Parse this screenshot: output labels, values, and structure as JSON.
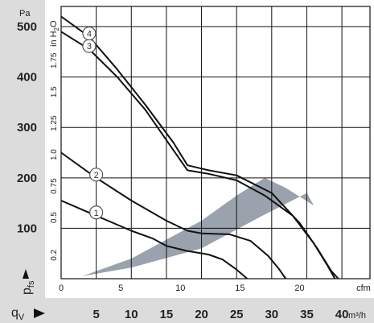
{
  "chart_data": {
    "type": "line",
    "x_label_cfm": "cfm",
    "x_label_m3h": "m³/h",
    "x_label_flow": "q",
    "x_label_flow_sub": "V",
    "y_label_pa": "Pa",
    "y_label_in": "in H",
    "y_label_in_sub": "2",
    "y_label_in_tail": "O",
    "y_label_pressure": "p",
    "y_label_pressure_sub": "fs",
    "x_cfm_ticks": [
      "0",
      "5",
      "10",
      "15",
      "20",
      "cfm"
    ],
    "x_m3h_ticks": [
      "5",
      "10",
      "15",
      "20",
      "25",
      "30",
      "35",
      "40"
    ],
    "y_pa_ticks": [
      "100",
      "200",
      "300",
      "400",
      "500"
    ],
    "y_in_ticks": [
      "0.2",
      "0.5",
      "0.75",
      "1.0",
      "1.25",
      "1.5",
      "1.75",
      "in H2O"
    ],
    "xlim_m3h": [
      0,
      44
    ],
    "ylim_pa": [
      0,
      540
    ],
    "operating_region": {
      "lower_edge": [
        [
          3,
          5
        ],
        [
          10,
          22
        ],
        [
          20,
          60
        ],
        [
          28,
          120
        ],
        [
          35,
          170
        ]
      ],
      "upper_edge": [
        [
          3,
          5
        ],
        [
          10,
          40
        ],
        [
          20,
          115
        ],
        [
          25,
          165
        ],
        [
          29,
          200
        ],
        [
          32,
          180
        ],
        [
          36,
          145
        ],
        [
          35,
          170
        ]
      ]
    },
    "series": [
      {
        "name": "1",
        "points": [
          [
            0,
            155
          ],
          [
            5,
            125
          ],
          [
            10,
            95
          ],
          [
            13,
            80
          ],
          [
            15,
            65
          ],
          [
            18,
            55
          ],
          [
            21,
            48
          ],
          [
            23,
            38
          ],
          [
            25,
            18
          ],
          [
            26.5,
            0
          ]
        ]
      },
      {
        "name": "2",
        "points": [
          [
            0,
            250
          ],
          [
            5,
            200
          ],
          [
            10,
            155
          ],
          [
            15,
            115
          ],
          [
            18,
            95
          ],
          [
            20,
            90
          ],
          [
            24,
            88
          ],
          [
            27,
            75
          ],
          [
            29.5,
            45
          ],
          [
            31,
            20
          ],
          [
            32,
            0
          ]
        ]
      },
      {
        "name": "3",
        "points": [
          [
            0,
            490
          ],
          [
            4,
            455
          ],
          [
            8,
            400
          ],
          [
            12,
            335
          ],
          [
            16,
            255
          ],
          [
            18,
            215
          ],
          [
            21,
            208
          ],
          [
            25,
            195
          ],
          [
            29,
            165
          ],
          [
            33,
            125
          ],
          [
            36,
            70
          ],
          [
            38,
            25
          ],
          [
            39,
            0
          ]
        ]
      },
      {
        "name": "4",
        "points": [
          [
            0,
            520
          ],
          [
            4,
            480
          ],
          [
            8,
            415
          ],
          [
            12,
            345
          ],
          [
            16,
            270
          ],
          [
            18,
            225
          ],
          [
            21,
            215
          ],
          [
            25,
            205
          ],
          [
            30,
            170
          ],
          [
            34,
            110
          ],
          [
            36.5,
            60
          ],
          [
            38.5,
            15
          ],
          [
            39.5,
            0
          ]
        ]
      }
    ]
  },
  "colors": {
    "left_band": "#dcdcdc",
    "bottom_band": "#dcdcdc",
    "grid": "#111111",
    "curve": "#111111",
    "region_fill": "#9aa3ad",
    "badge_fill": "#ffffff",
    "badge_stroke": "#555555"
  }
}
